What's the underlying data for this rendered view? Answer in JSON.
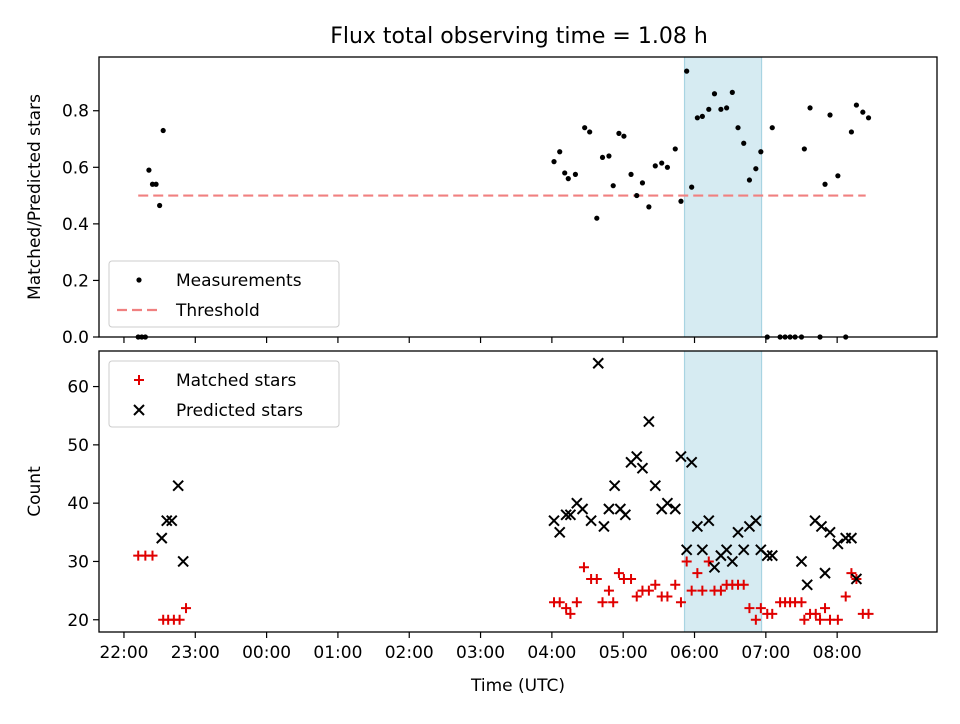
{
  "figure_title": "Flux total observing time = 1.08 h",
  "chart_data": [
    {
      "type": "scatter",
      "ylabel": "Matched/Predicted stars",
      "xlim": [
        -2.35,
        9.4
      ],
      "ylim": [
        0,
        0.99
      ],
      "yticks": [
        "0.0",
        "0.2",
        "0.4",
        "0.6",
        "0.8"
      ],
      "highlight_span": [
        5.86,
        6.94
      ],
      "threshold": {
        "y": 0.5,
        "x_range": [
          -1.8,
          8.4
        ],
        "color": "#f08080"
      },
      "legend": {
        "placement": "lower-left",
        "entries": [
          "Measurements",
          "Threshold"
        ]
      },
      "series": [
        {
          "name": "Measurements",
          "color": "#000000",
          "x": [
            -1.8,
            -1.75,
            -1.7,
            -1.65,
            -1.6,
            -1.55,
            -1.5,
            -1.45,
            -1.4,
            -1.35,
            4.03,
            4.11,
            4.18,
            4.23,
            4.33,
            4.46,
            4.53,
            4.63,
            4.71,
            4.8,
            4.86,
            4.94,
            5.01,
            5.11,
            5.19,
            5.27,
            5.36,
            5.45,
            5.54,
            5.62,
            5.73,
            5.81,
            5.89,
            5.96,
            6.04,
            6.11,
            6.2,
            6.28,
            6.37,
            6.45,
            6.53,
            6.61,
            6.69,
            6.77,
            6.86,
            6.93,
            7.02,
            7.09,
            7.2,
            7.27,
            7.34,
            7.41,
            7.5,
            7.54,
            7.62,
            7.76,
            7.83,
            7.9,
            8.01,
            8.12,
            8.2,
            8.27,
            8.36,
            8.44
          ],
          "y": [
            0.0,
            0.0,
            0.0,
            0.59,
            0.54,
            0.54,
            0.465,
            0.73,
            null,
            null,
            0.62,
            0.655,
            0.58,
            0.56,
            0.575,
            0.74,
            0.725,
            0.42,
            0.635,
            0.64,
            0.535,
            0.72,
            0.71,
            0.575,
            0.5,
            0.545,
            0.46,
            0.605,
            0.615,
            0.6,
            0.665,
            0.48,
            0.94,
            0.53,
            0.775,
            0.78,
            0.805,
            0.86,
            0.805,
            0.81,
            0.865,
            0.74,
            0.685,
            0.555,
            0.595,
            0.655,
            0.0,
            0.74,
            0.0,
            0.0,
            0.0,
            0.0,
            0.0,
            0.665,
            0.81,
            0.0,
            0.54,
            0.785,
            0.57,
            0.0,
            0.725,
            0.82,
            0.795,
            0.775
          ]
        }
      ]
    },
    {
      "type": "scatter",
      "ylabel": "Count",
      "xlabel": "Time (UTC)",
      "xlim": [
        -2.35,
        9.4
      ],
      "ylim": [
        17.9,
        66.1
      ],
      "yticks": [
        "20",
        "30",
        "40",
        "50",
        "60"
      ],
      "xticks": [
        {
          "v": -2,
          "label": "22:00"
        },
        {
          "v": -1,
          "label": "23:00"
        },
        {
          "v": 0,
          "label": "00:00"
        },
        {
          "v": 1,
          "label": "01:00"
        },
        {
          "v": 2,
          "label": "02:00"
        },
        {
          "v": 3,
          "label": "03:00"
        },
        {
          "v": 4,
          "label": "04:00"
        },
        {
          "v": 5,
          "label": "05:00"
        },
        {
          "v": 6,
          "label": "06:00"
        },
        {
          "v": 7,
          "label": "07:00"
        },
        {
          "v": 8,
          "label": "08:00"
        }
      ],
      "highlight_span": [
        5.86,
        6.94
      ],
      "legend": {
        "placement": "upper-left",
        "entries": [
          "Matched stars",
          "Predicted stars"
        ]
      },
      "series": [
        {
          "name": "Matched stars",
          "color": "#e00000",
          "x": [
            -1.8,
            -1.7,
            -1.6,
            -1.45,
            -1.38,
            -1.3,
            -1.22,
            -1.13,
            4.03,
            4.11,
            4.2,
            4.26,
            4.35,
            4.45,
            4.55,
            4.63,
            4.71,
            4.8,
            4.86,
            4.94,
            5.01,
            5.11,
            5.19,
            5.27,
            5.36,
            5.45,
            5.54,
            5.62,
            5.73,
            5.81,
            5.89,
            5.96,
            6.04,
            6.11,
            6.2,
            6.28,
            6.37,
            6.45,
            6.53,
            6.61,
            6.69,
            6.77,
            6.86,
            6.93,
            7.02,
            7.09,
            7.2,
            7.27,
            7.34,
            7.41,
            7.5,
            7.54,
            7.62,
            7.7,
            7.76,
            7.83,
            7.9,
            8.01,
            8.12,
            8.2,
            8.27,
            8.36,
            8.44
          ],
          "y": [
            31,
            31,
            31,
            20,
            20,
            20,
            20,
            22,
            23,
            23,
            22,
            21,
            23,
            29,
            27,
            27,
            23,
            25,
            23,
            28,
            27,
            27,
            24,
            25,
            25,
            26,
            24,
            24,
            26,
            23,
            30,
            25,
            28,
            25,
            30,
            25,
            25,
            26,
            26,
            26,
            26,
            22,
            20,
            22,
            21,
            21,
            23,
            23,
            23,
            23,
            23,
            20,
            21,
            21,
            20,
            22,
            20,
            20,
            24,
            28,
            27,
            21,
            21
          ]
        },
        {
          "name": "Predicted stars",
          "color": "#000000",
          "x": [
            -1.47,
            -1.4,
            -1.33,
            -1.24,
            -1.17,
            4.03,
            4.11,
            4.2,
            4.26,
            4.35,
            4.43,
            4.55,
            4.65,
            4.73,
            4.8,
            4.88,
            4.96,
            5.03,
            5.11,
            5.19,
            5.27,
            5.36,
            5.45,
            5.54,
            5.62,
            5.73,
            5.81,
            5.89,
            5.96,
            6.04,
            6.11,
            6.2,
            6.28,
            6.37,
            6.45,
            6.53,
            6.61,
            6.69,
            6.77,
            6.86,
            6.93,
            7.02,
            7.09,
            7.5,
            7.58,
            7.69,
            7.78,
            7.83,
            7.9,
            8.01,
            8.12,
            8.2,
            8.27,
            8.36,
            8.44
          ],
          "y": [
            34,
            37,
            37,
            43,
            30,
            37,
            35,
            38,
            38,
            40,
            39,
            37,
            64,
            36,
            39,
            43,
            39,
            38,
            47,
            48,
            46,
            54,
            43,
            39,
            40,
            39,
            48,
            32,
            47,
            36,
            32,
            37,
            29,
            31,
            32,
            30,
            35,
            32,
            36,
            37,
            32,
            31,
            31,
            30,
            26,
            37,
            36,
            28,
            35,
            33,
            34,
            34,
            27,
            null,
            null
          ]
        }
      ]
    }
  ]
}
